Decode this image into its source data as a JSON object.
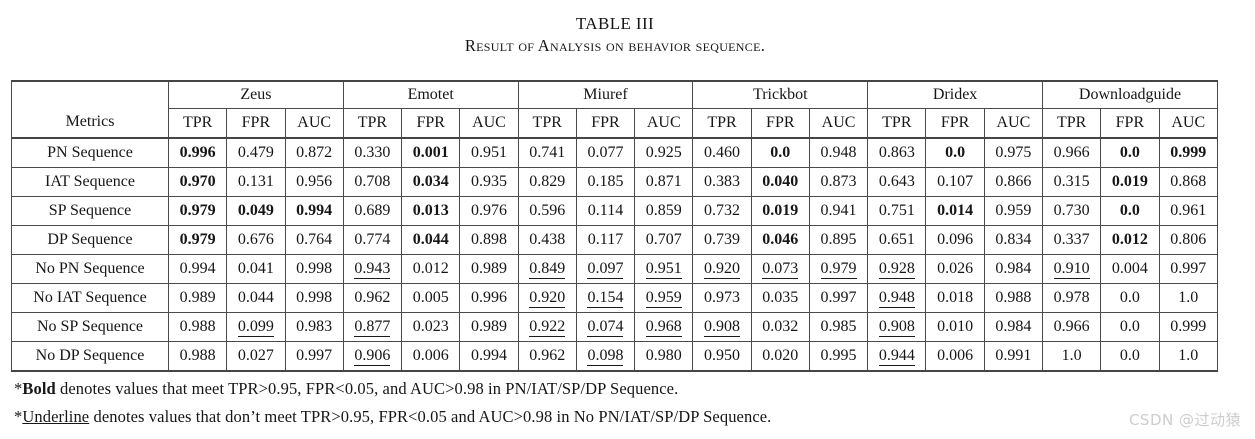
{
  "title": "TABLE III",
  "subtitle": "Result of Analysis on behavior sequence.",
  "table": {
    "metrics_header": "Metrics",
    "groups": [
      "Zeus",
      "Emotet",
      "Miuref",
      "Trickbot",
      "Dridex",
      "Downloadguide"
    ],
    "sub_headers": [
      "TPR",
      "FPR",
      "AUC"
    ],
    "rows": [
      {
        "metric": "PN Sequence",
        "cells": [
          {
            "v": "0.996",
            "b": true
          },
          {
            "v": "0.479"
          },
          {
            "v": "0.872"
          },
          {
            "v": "0.330"
          },
          {
            "v": "0.001",
            "b": true
          },
          {
            "v": "0.951"
          },
          {
            "v": "0.741"
          },
          {
            "v": "0.077"
          },
          {
            "v": "0.925"
          },
          {
            "v": "0.460"
          },
          {
            "v": "0.0",
            "b": true
          },
          {
            "v": "0.948"
          },
          {
            "v": "0.863"
          },
          {
            "v": "0.0",
            "b": true
          },
          {
            "v": "0.975"
          },
          {
            "v": "0.966"
          },
          {
            "v": "0.0",
            "b": true
          },
          {
            "v": "0.999",
            "b": true
          }
        ]
      },
      {
        "metric": "IAT Sequence",
        "cells": [
          {
            "v": "0.970",
            "b": true
          },
          {
            "v": "0.131"
          },
          {
            "v": "0.956"
          },
          {
            "v": "0.708"
          },
          {
            "v": "0.034",
            "b": true
          },
          {
            "v": "0.935"
          },
          {
            "v": "0.829"
          },
          {
            "v": "0.185"
          },
          {
            "v": "0.871"
          },
          {
            "v": "0.383"
          },
          {
            "v": "0.040",
            "b": true
          },
          {
            "v": "0.873"
          },
          {
            "v": "0.643"
          },
          {
            "v": "0.107"
          },
          {
            "v": "0.866"
          },
          {
            "v": "0.315"
          },
          {
            "v": "0.019",
            "b": true
          },
          {
            "v": "0.868"
          }
        ]
      },
      {
        "metric": "SP Sequence",
        "cells": [
          {
            "v": "0.979",
            "b": true
          },
          {
            "v": "0.049",
            "b": true
          },
          {
            "v": "0.994",
            "b": true
          },
          {
            "v": "0.689"
          },
          {
            "v": "0.013",
            "b": true
          },
          {
            "v": "0.976"
          },
          {
            "v": "0.596"
          },
          {
            "v": "0.114"
          },
          {
            "v": "0.859"
          },
          {
            "v": "0.732"
          },
          {
            "v": "0.019",
            "b": true
          },
          {
            "v": "0.941"
          },
          {
            "v": "0.751"
          },
          {
            "v": "0.014",
            "b": true
          },
          {
            "v": "0.959"
          },
          {
            "v": "0.730"
          },
          {
            "v": "0.0",
            "b": true
          },
          {
            "v": "0.961"
          }
        ]
      },
      {
        "metric": "DP Sequence",
        "cells": [
          {
            "v": "0.979",
            "b": true
          },
          {
            "v": "0.676"
          },
          {
            "v": "0.764"
          },
          {
            "v": "0.774"
          },
          {
            "v": "0.044",
            "b": true
          },
          {
            "v": "0.898"
          },
          {
            "v": "0.438"
          },
          {
            "v": "0.117"
          },
          {
            "v": "0.707"
          },
          {
            "v": "0.739"
          },
          {
            "v": "0.046",
            "b": true
          },
          {
            "v": "0.895"
          },
          {
            "v": "0.651"
          },
          {
            "v": "0.096"
          },
          {
            "v": "0.834"
          },
          {
            "v": "0.337"
          },
          {
            "v": "0.012",
            "b": true
          },
          {
            "v": "0.806"
          }
        ]
      },
      {
        "metric": "No PN Sequence",
        "cells": [
          {
            "v": "0.994"
          },
          {
            "v": "0.041"
          },
          {
            "v": "0.998"
          },
          {
            "v": "0.943",
            "u": true
          },
          {
            "v": "0.012"
          },
          {
            "v": "0.989"
          },
          {
            "v": "0.849",
            "u": true
          },
          {
            "v": "0.097",
            "u": true
          },
          {
            "v": "0.951",
            "u": true
          },
          {
            "v": "0.920",
            "u": true
          },
          {
            "v": "0.073",
            "u": true
          },
          {
            "v": "0.979",
            "u": true
          },
          {
            "v": "0.928",
            "u": true
          },
          {
            "v": "0.026"
          },
          {
            "v": "0.984"
          },
          {
            "v": "0.910",
            "u": true
          },
          {
            "v": "0.004"
          },
          {
            "v": "0.997"
          }
        ]
      },
      {
        "metric": "No IAT Sequence",
        "cells": [
          {
            "v": "0.989"
          },
          {
            "v": "0.044"
          },
          {
            "v": "0.998"
          },
          {
            "v": "0.962"
          },
          {
            "v": "0.005"
          },
          {
            "v": "0.996"
          },
          {
            "v": "0.920",
            "u": true
          },
          {
            "v": "0.154",
            "u": true
          },
          {
            "v": "0.959",
            "u": true
          },
          {
            "v": "0.973"
          },
          {
            "v": "0.035"
          },
          {
            "v": "0.997"
          },
          {
            "v": "0.948",
            "u": true
          },
          {
            "v": "0.018"
          },
          {
            "v": "0.988"
          },
          {
            "v": "0.978"
          },
          {
            "v": "0.0"
          },
          {
            "v": "1.0"
          }
        ]
      },
      {
        "metric": "No SP Sequence",
        "cells": [
          {
            "v": "0.988"
          },
          {
            "v": "0.099",
            "u": true
          },
          {
            "v": "0.983"
          },
          {
            "v": "0.877",
            "u": true
          },
          {
            "v": "0.023"
          },
          {
            "v": "0.989"
          },
          {
            "v": "0.922",
            "u": true
          },
          {
            "v": "0.074",
            "u": true
          },
          {
            "v": "0.968",
            "u": true
          },
          {
            "v": "0.908",
            "u": true
          },
          {
            "v": "0.032"
          },
          {
            "v": "0.985"
          },
          {
            "v": "0.908",
            "u": true
          },
          {
            "v": "0.010"
          },
          {
            "v": "0.984"
          },
          {
            "v": "0.966"
          },
          {
            "v": "0.0"
          },
          {
            "v": "0.999"
          }
        ]
      },
      {
        "metric": "No DP Sequence",
        "cells": [
          {
            "v": "0.988"
          },
          {
            "v": "0.027"
          },
          {
            "v": "0.997"
          },
          {
            "v": "0.906",
            "u": true
          },
          {
            "v": "0.006"
          },
          {
            "v": "0.994"
          },
          {
            "v": "0.962"
          },
          {
            "v": "0.098",
            "u": true
          },
          {
            "v": "0.980"
          },
          {
            "v": "0.950"
          },
          {
            "v": "0.020"
          },
          {
            "v": "0.995"
          },
          {
            "v": "0.944",
            "u": true
          },
          {
            "v": "0.006"
          },
          {
            "v": "0.991"
          },
          {
            "v": "1.0"
          },
          {
            "v": "0.0"
          },
          {
            "v": "1.0"
          }
        ]
      }
    ]
  },
  "footnotes": [
    {
      "prefix": "*",
      "term": "Bold",
      "term_style": "bold",
      "text": " denotes values that meet TPR>0.95, FPR<0.05, and AUC>0.98 in PN/IAT/SP/DP Sequence."
    },
    {
      "prefix": "*",
      "term": "Underline",
      "term_style": "underline",
      "text": " denotes values that don’t meet TPR>0.95, FPR<0.05 and AUC>0.98 in No PN/IAT/SP/DP Sequence."
    }
  ],
  "watermark": "CSDN @过动猿"
}
